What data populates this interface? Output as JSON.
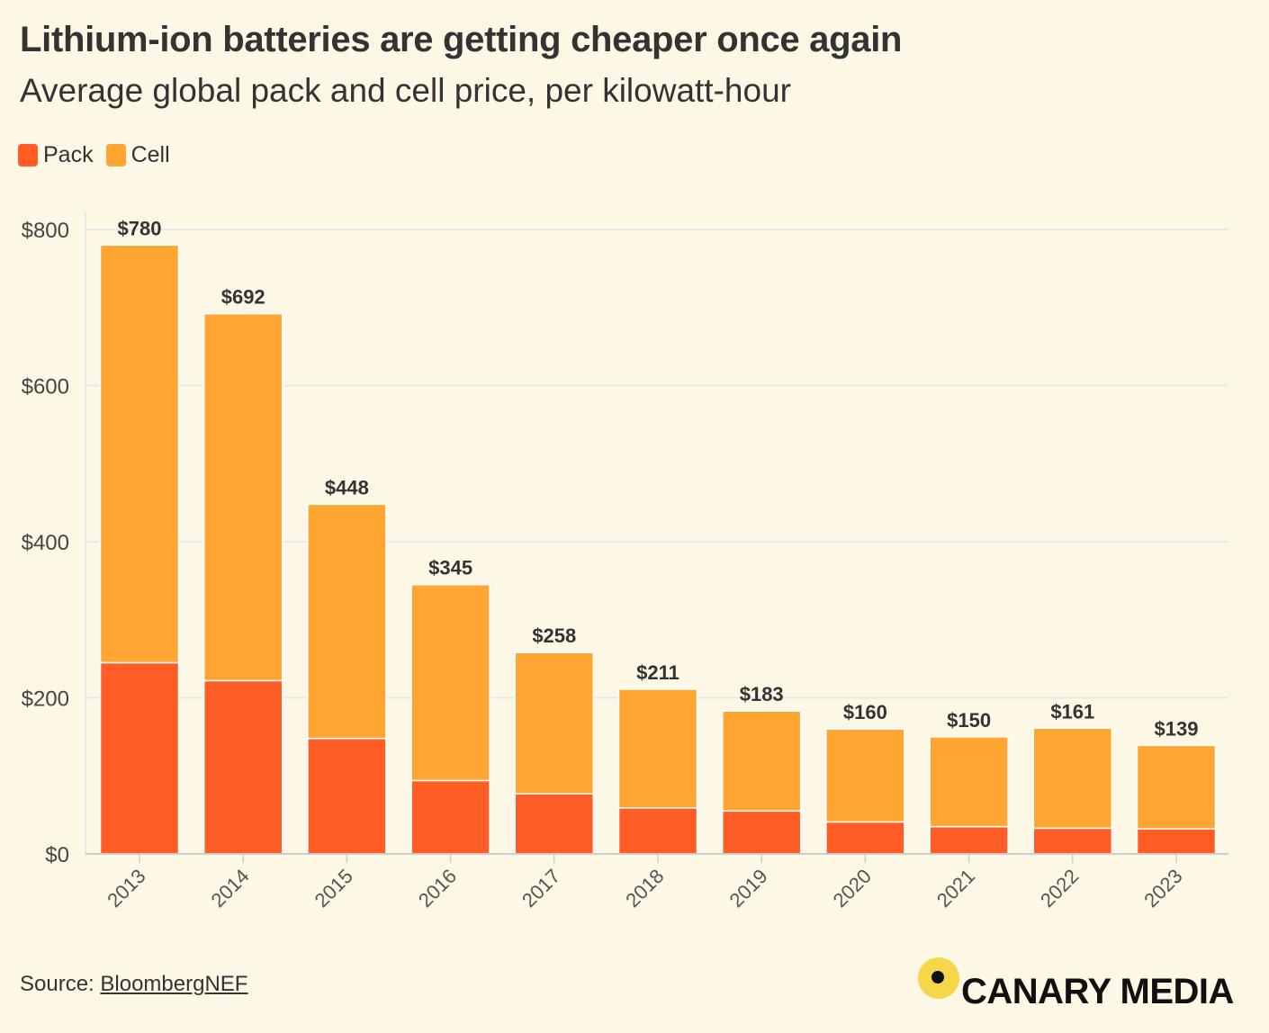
{
  "chart_data": {
    "type": "bar",
    "stacked": true,
    "title": "Lithium-ion batteries are getting cheaper once again",
    "subtitle": "Average global pack and cell price, per kilowatt-hour",
    "categories": [
      "2013",
      "2014",
      "2015",
      "2016",
      "2017",
      "2018",
      "2019",
      "2020",
      "2021",
      "2022",
      "2023"
    ],
    "series": [
      {
        "name": "Pack",
        "color": "#ff5c26",
        "values": [
          245,
          222,
          148,
          94,
          77,
          59,
          55,
          41,
          35,
          33,
          32
        ]
      },
      {
        "name": "Cell",
        "color": "#ffa531",
        "values": [
          535,
          470,
          300,
          251,
          181,
          152,
          128,
          119,
          115,
          128,
          107
        ]
      }
    ],
    "totals": [
      780,
      692,
      448,
      345,
      258,
      211,
      183,
      160,
      150,
      161,
      139
    ],
    "total_labels": [
      "$780",
      "$692",
      "$448",
      "$345",
      "$258",
      "$211",
      "$183",
      "$160",
      "$150",
      "$161",
      "$139"
    ],
    "ylim": [
      0,
      800
    ],
    "yticks": [
      0,
      200,
      400,
      600,
      800
    ],
    "ytick_labels": [
      "$0",
      "$200",
      "$400",
      "$600",
      "$800"
    ],
    "xlabel": "",
    "ylabel": "",
    "grid": true,
    "legend_position": "top-left"
  },
  "source": {
    "label": "Source:",
    "name": "BloombergNEF"
  },
  "brand": {
    "name": "CANARY MEDIA"
  }
}
